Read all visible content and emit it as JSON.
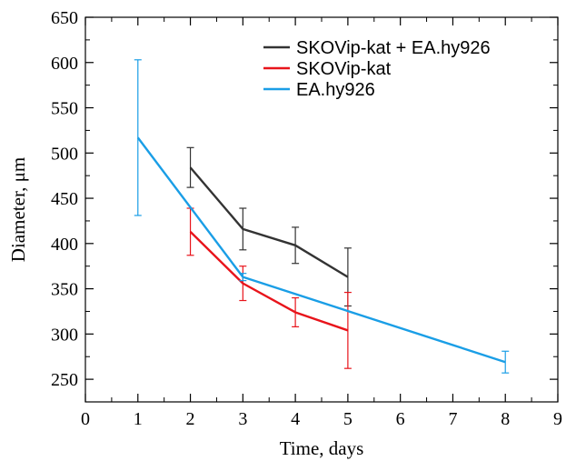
{
  "chart_data": {
    "type": "line",
    "xlabel": "Time, days",
    "ylabel": "Diameter, μm",
    "xlim": [
      0,
      9
    ],
    "ylim": [
      225,
      650
    ],
    "x_ticks": [
      0,
      1,
      2,
      3,
      4,
      5,
      6,
      7,
      8,
      9
    ],
    "y_ticks": [
      250,
      300,
      350,
      400,
      450,
      500,
      550,
      600,
      650
    ],
    "grid": false,
    "legend_position": "top-right",
    "series": [
      {
        "name": "SKOVip-kat + EA.hy926",
        "color": "#333333",
        "x": [
          2,
          3,
          4,
          5
        ],
        "y": [
          484,
          416,
          398,
          363
        ],
        "err": [
          22,
          23,
          20,
          32
        ]
      },
      {
        "name": "SKOVip-kat",
        "color": "#e8141b",
        "x": [
          2,
          3,
          4,
          5
        ],
        "y": [
          413,
          356,
          324,
          304
        ],
        "err": [
          26,
          19,
          16,
          42
        ]
      },
      {
        "name": "EA.hy926",
        "color": "#1a9ee6",
        "x": [
          1,
          3,
          8
        ],
        "y": [
          517,
          363,
          269
        ],
        "err": [
          86,
          4,
          12
        ]
      }
    ]
  }
}
